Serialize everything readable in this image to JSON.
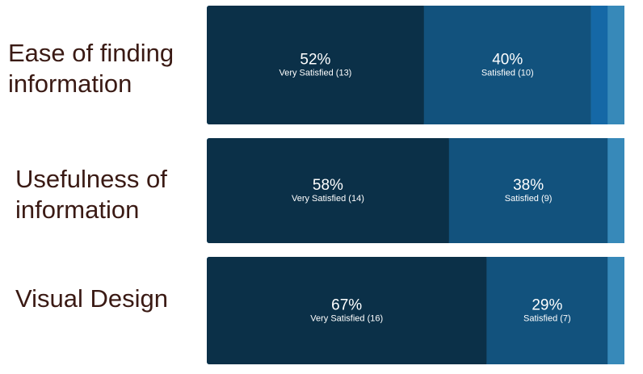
{
  "chart_data": {
    "type": "bar",
    "orientation": "horizontal",
    "stacked": true,
    "categories": [
      "Ease of finding information",
      "Usefulness of information",
      "Visual Design"
    ],
    "category_label_lines": [
      [
        "Ease of finding",
        "information"
      ],
      [
        "Usefulness of",
        "information"
      ],
      [
        "Visual Design"
      ]
    ],
    "series": [
      {
        "name": "Very Satisfied",
        "values": [
          52,
          58,
          67
        ],
        "counts": [
          13,
          14,
          16
        ],
        "color": "#0b3048"
      },
      {
        "name": "Satisfied",
        "values": [
          40,
          38,
          29
        ],
        "counts": [
          10,
          9,
          7
        ],
        "color": "#12527d"
      },
      {
        "name": "",
        "values": [
          4,
          0,
          0
        ],
        "color": "#1568a6"
      },
      {
        "name": "",
        "values": [
          4,
          4,
          4
        ],
        "color": "#3789b9"
      }
    ],
    "xlim": [
      0,
      100
    ],
    "grid": false,
    "legend": "none"
  },
  "colors": {
    "label_text": "#3a1a14",
    "bar_text": "#ffffff"
  }
}
